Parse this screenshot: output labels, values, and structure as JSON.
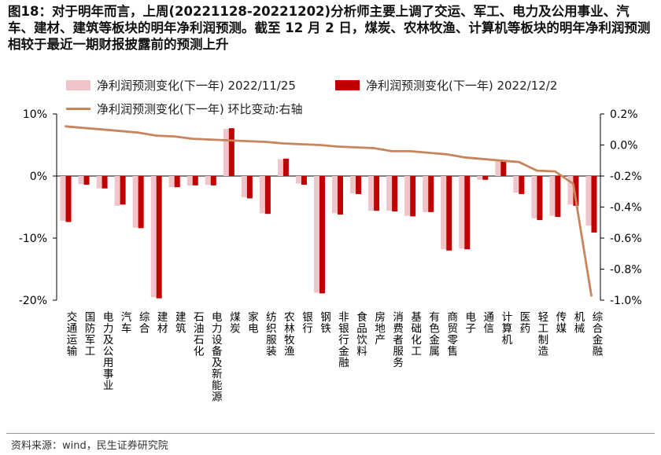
{
  "title": "图18：对于明年而言，上周(20221128-20221202)分析师主要上调了交运、军工、电力及公用事业、汽车、建材、建筑等板块的明年净利润预测。截至 12 月 2 日，煤炭、农林牧渔、计算机等板块的明年净利润预测相较于最近一期财报披露前的预测上升",
  "source": "资料来源：wind，民生证券研究院",
  "colors": {
    "series1": "#f0c4c8",
    "series2": "#c00000",
    "line": "#c8845a",
    "axis": "#000000"
  },
  "chart_data": {
    "type": "bar",
    "categories": [
      "交通运输",
      "国防军工",
      "电力及公用事业",
      "汽车",
      "综合",
      "建材",
      "建筑",
      "石油石化",
      "电力设备及新能源",
      "煤炭",
      "家电",
      "纺织服装",
      "农林牧渔",
      "银行",
      "钢铁",
      "非银行金融",
      "食品饮料",
      "房地产",
      "消费者服务",
      "基础化工",
      "有色金属",
      "商贸零售",
      "电子",
      "通信",
      "计算机",
      "医药",
      "轻工制造",
      "传媒",
      "机械",
      "综合金融"
    ],
    "series": [
      {
        "name": "净利润预测变化(下一年) 2022/11/25",
        "axis": "left",
        "values": [
          -7.2,
          -1.3,
          -2.0,
          -4.8,
          -8.3,
          -19.5,
          -1.8,
          -1.5,
          -1.4,
          7.6,
          -3.4,
          -6.0,
          2.7,
          -1.2,
          -18.8,
          -6.0,
          -2.8,
          -5.6,
          -5.6,
          -6.4,
          -5.8,
          -11.8,
          -11.7,
          -0.6,
          2.4,
          -2.7,
          -6.8,
          -6.4,
          -4.6,
          -8.0
        ]
      },
      {
        "name": "净利润预测变化(下一年) 2022/12/2",
        "axis": "left",
        "values": [
          -7.4,
          -1.4,
          -2.0,
          -4.6,
          -8.4,
          -19.7,
          -1.8,
          -1.5,
          -1.5,
          7.7,
          -3.6,
          -6.1,
          2.8,
          -1.4,
          -18.9,
          -6.2,
          -2.9,
          -5.6,
          -5.7,
          -6.5,
          -5.8,
          -12.0,
          -11.8,
          -0.6,
          2.4,
          -2.9,
          -7.1,
          -6.6,
          -4.8,
          -9.1
        ]
      },
      {
        "name": "净利润预测变化(下一年) 环比变动:右轴",
        "axis": "right",
        "type": "line",
        "values": [
          0.12,
          0.11,
          0.1,
          0.09,
          0.08,
          0.06,
          0.055,
          0.04,
          0.035,
          0.03,
          0.025,
          0.02,
          0.01,
          0.005,
          0.0,
          -0.01,
          -0.015,
          -0.02,
          -0.04,
          -0.04,
          -0.05,
          -0.06,
          -0.08,
          -0.09,
          -0.1,
          -0.11,
          -0.165,
          -0.17,
          -0.25,
          -0.97
        ]
      }
    ],
    "yleft": {
      "ylim": [
        -20,
        10
      ],
      "ticks": [
        10,
        0,
        -10,
        -20
      ],
      "tick_labels": [
        "10%",
        "0%",
        "-10%",
        "-20%"
      ]
    },
    "yright": {
      "ylim": [
        -1.0,
        0.2
      ],
      "ticks": [
        0.2,
        0.0,
        -0.2,
        -0.4,
        -0.6,
        -0.8,
        -1.0
      ],
      "tick_labels": [
        "0.2%",
        "0.0%",
        "-0.2%",
        "-0.4%",
        "-0.6%",
        "-0.8%",
        "-1.0%"
      ]
    },
    "legend_position": "top",
    "grid": false
  }
}
